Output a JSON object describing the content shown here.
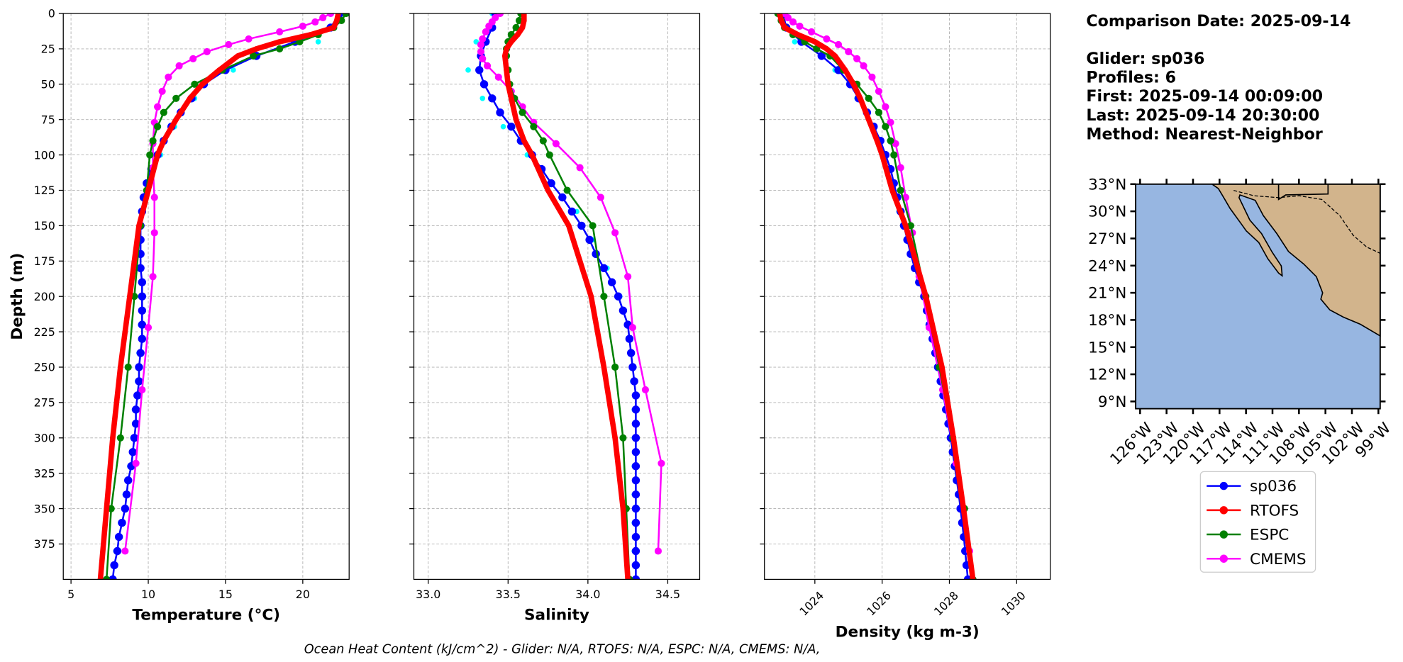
{
  "chart_data": [
    {
      "type": "line",
      "xlabel": "Temperature (°C)",
      "ylabel": "Depth (m)",
      "xlim": [
        4.5,
        23
      ],
      "ylim": [
        400,
        0
      ],
      "xticks": [
        5,
        10,
        15,
        20
      ],
      "yticks": [
        0,
        25,
        50,
        75,
        100,
        125,
        150,
        175,
        200,
        225,
        250,
        275,
        300,
        325,
        350,
        375
      ],
      "show_ytick_labels": true,
      "rotate_xticks": false,
      "grid": true,
      "series": [
        {
          "color": "#00ffff",
          "linewidth": 0,
          "markersize": 3,
          "y": [
            0,
            20,
            40,
            60,
            80,
            100,
            120,
            140,
            160,
            180,
            200,
            220,
            240,
            260,
            280,
            300,
            320,
            340,
            360,
            380,
            400
          ],
          "values": [
            22.6,
            21.0,
            15.5,
            13.0,
            11.7,
            10.8,
            10.0,
            9.6,
            9.4,
            9.4,
            9.5,
            9.5,
            9.4,
            9.3,
            9.1,
            9.0,
            8.8,
            8.5,
            8.2,
            7.9,
            7.6
          ]
        },
        {
          "name": "sp036",
          "color": "#0000ff",
          "linewidth": 2,
          "markersize": 4.5,
          "y": [
            0,
            10,
            20,
            30,
            40,
            50,
            60,
            70,
            80,
            90,
            100,
            110,
            120,
            130,
            140,
            150,
            160,
            170,
            180,
            190,
            200,
            210,
            220,
            230,
            240,
            250,
            260,
            270,
            280,
            290,
            300,
            310,
            320,
            330,
            340,
            350,
            360,
            370,
            380,
            390,
            400
          ],
          "values": [
            22.4,
            21.8,
            19.5,
            17.0,
            15.0,
            13.6,
            12.8,
            12.1,
            11.5,
            11.0,
            10.6,
            10.2,
            9.9,
            9.7,
            9.6,
            9.5,
            9.5,
            9.5,
            9.5,
            9.6,
            9.6,
            9.6,
            9.6,
            9.6,
            9.5,
            9.4,
            9.4,
            9.3,
            9.2,
            9.2,
            9.1,
            9.0,
            8.9,
            8.7,
            8.6,
            8.5,
            8.3,
            8.1,
            8.0,
            7.8,
            7.7
          ]
        },
        {
          "name": "CMEMS",
          "color": "#ff00ff",
          "linewidth": 2,
          "markersize": 4,
          "y": [
            0,
            3,
            6,
            9,
            13,
            18,
            22,
            27,
            32,
            37,
            45,
            55,
            66,
            77,
            92,
            109,
            130,
            155,
            186,
            222,
            266,
            318,
            380
          ],
          "values": [
            21.8,
            21.3,
            20.8,
            20.0,
            18.5,
            16.5,
            15.2,
            13.8,
            12.9,
            12.0,
            11.3,
            10.9,
            10.6,
            10.4,
            10.3,
            10.3,
            10.4,
            10.4,
            10.3,
            10.0,
            9.6,
            9.2,
            8.5
          ]
        },
        {
          "name": "ESPC",
          "color": "#008000",
          "linewidth": 2,
          "markersize": 4,
          "y": [
            0,
            5,
            10,
            15,
            20,
            25,
            30,
            40,
            50,
            60,
            70,
            80,
            90,
            100,
            125,
            150,
            200,
            250,
            300,
            350,
            400
          ],
          "values": [
            22.8,
            22.5,
            22.0,
            21.0,
            19.8,
            18.5,
            16.8,
            14.8,
            13.0,
            11.8,
            11.0,
            10.6,
            10.3,
            10.1,
            9.9,
            9.5,
            9.1,
            8.7,
            8.2,
            7.6,
            7.3
          ]
        },
        {
          "name": "RTOFS",
          "color": "#ff0000",
          "linewidth": 6,
          "markersize": 3,
          "y": [
            0,
            5,
            10,
            15,
            20,
            25,
            30,
            40,
            50,
            60,
            75,
            90,
            100,
            125,
            150,
            200,
            250,
            300,
            350,
            400
          ],
          "values": [
            22.3,
            22.2,
            22.0,
            20.5,
            18.5,
            17.0,
            15.8,
            14.6,
            13.5,
            12.7,
            11.8,
            11.0,
            10.6,
            10.0,
            9.4,
            8.8,
            8.2,
            7.7,
            7.3,
            6.9
          ]
        }
      ]
    },
    {
      "type": "line",
      "xlabel": "Salinity",
      "xlim": [
        32.91,
        34.7
      ],
      "ylim": [
        400,
        0
      ],
      "xticks": [
        {
          "value": 33,
          "label": "33.0"
        },
        {
          "value": 33.5,
          "label": "33.5"
        },
        {
          "value": 34,
          "label": "34.0"
        },
        {
          "value": 34.5,
          "label": "34.5"
        }
      ],
      "yticks": [
        0,
        25,
        50,
        75,
        100,
        125,
        150,
        175,
        200,
        225,
        250,
        275,
        300,
        325,
        350,
        375
      ],
      "show_ytick_labels": false,
      "rotate_xticks": false,
      "grid": true,
      "series": [
        {
          "color": "#00ffff",
          "linewidth": 0,
          "markersize": 3,
          "y": [
            0,
            20,
            40,
            60,
            80,
            100,
            120,
            140,
            160,
            180,
            200,
            220,
            240,
            260,
            280,
            300,
            320,
            340,
            360,
            380,
            400
          ],
          "values": [
            33.4,
            33.3,
            33.25,
            33.34,
            33.47,
            33.62,
            33.78,
            33.93,
            34.03,
            34.12,
            34.2,
            34.25,
            34.27,
            34.28,
            34.29,
            34.29,
            34.29,
            34.29,
            34.29,
            34.29,
            34.29
          ]
        },
        {
          "name": "sp036",
          "color": "#0000ff",
          "linewidth": 2,
          "markersize": 4.5,
          "y": [
            0,
            10,
            20,
            30,
            40,
            50,
            60,
            70,
            80,
            90,
            100,
            110,
            120,
            130,
            140,
            150,
            160,
            170,
            180,
            190,
            200,
            210,
            220,
            230,
            240,
            250,
            260,
            270,
            280,
            290,
            300,
            310,
            320,
            330,
            340,
            350,
            360,
            370,
            380,
            390,
            400
          ],
          "values": [
            33.42,
            33.4,
            33.36,
            33.33,
            33.32,
            33.35,
            33.4,
            33.45,
            33.52,
            33.58,
            33.65,
            33.71,
            33.77,
            33.84,
            33.9,
            33.96,
            34.01,
            34.05,
            34.1,
            34.15,
            34.19,
            34.22,
            34.25,
            34.26,
            34.27,
            34.28,
            34.29,
            34.3,
            34.3,
            34.3,
            34.3,
            34.3,
            34.3,
            34.3,
            34.3,
            34.3,
            34.3,
            34.3,
            34.3,
            34.3,
            34.3
          ]
        },
        {
          "name": "CMEMS",
          "color": "#ff00ff",
          "linewidth": 2,
          "markersize": 4,
          "y": [
            0,
            3,
            6,
            9,
            13,
            18,
            22,
            27,
            32,
            37,
            45,
            55,
            66,
            77,
            92,
            109,
            130,
            155,
            186,
            222,
            266,
            318,
            380
          ],
          "values": [
            33.45,
            33.42,
            33.4,
            33.38,
            33.36,
            33.34,
            33.33,
            33.33,
            33.34,
            33.37,
            33.44,
            33.52,
            33.59,
            33.66,
            33.8,
            33.95,
            34.08,
            34.17,
            34.25,
            34.28,
            34.36,
            34.46,
            34.44
          ]
        },
        {
          "name": "ESPC",
          "color": "#008000",
          "linewidth": 2,
          "markersize": 4,
          "y": [
            0,
            5,
            10,
            15,
            20,
            25,
            30,
            40,
            50,
            60,
            70,
            80,
            90,
            100,
            125,
            150,
            200,
            250,
            300,
            350,
            400
          ],
          "values": [
            33.58,
            33.57,
            33.55,
            33.52,
            33.5,
            33.49,
            33.49,
            33.5,
            33.51,
            33.54,
            33.59,
            33.66,
            33.72,
            33.76,
            33.87,
            34.03,
            34.1,
            34.17,
            34.22,
            34.24,
            34.26
          ]
        },
        {
          "name": "RTOFS",
          "color": "#ff0000",
          "linewidth": 6,
          "markersize": 3,
          "y": [
            0,
            5,
            10,
            15,
            20,
            25,
            30,
            40,
            50,
            60,
            75,
            90,
            100,
            125,
            150,
            200,
            250,
            300,
            350,
            400
          ],
          "values": [
            33.6,
            33.6,
            33.59,
            33.56,
            33.52,
            33.49,
            33.48,
            33.49,
            33.5,
            33.52,
            33.55,
            33.6,
            33.65,
            33.75,
            33.88,
            34.02,
            34.1,
            34.17,
            34.22,
            34.25
          ]
        }
      ]
    },
    {
      "type": "line",
      "xlabel": "Density (kg m-3)",
      "xlim": [
        1022.5,
        1031
      ],
      "ylim": [
        400,
        0
      ],
      "xticks": [
        1024,
        1026,
        1028,
        1030
      ],
      "yticks": [
        0,
        25,
        50,
        75,
        100,
        125,
        150,
        175,
        200,
        225,
        250,
        275,
        300,
        325,
        350,
        375
      ],
      "show_ytick_labels": false,
      "rotate_xticks": true,
      "grid": true,
      "series": [
        {
          "color": "#00ffff",
          "linewidth": 0,
          "markersize": 3,
          "y": [
            0,
            20,
            40,
            60,
            80,
            100,
            120,
            140,
            160,
            180,
            200,
            220,
            240,
            260,
            280,
            300,
            320,
            340,
            360,
            380,
            400
          ],
          "values": [
            1023.0,
            1023.4,
            1024.6,
            1025.25,
            1025.7,
            1026.05,
            1026.3,
            1026.5,
            1026.72,
            1026.95,
            1027.22,
            1027.39,
            1027.56,
            1027.72,
            1027.88,
            1028.02,
            1028.14,
            1028.26,
            1028.36,
            1028.45,
            1028.53
          ]
        },
        {
          "name": "sp036",
          "color": "#0000ff",
          "linewidth": 2,
          "markersize": 4.5,
          "y": [
            0,
            10,
            20,
            30,
            40,
            50,
            60,
            70,
            80,
            90,
            100,
            110,
            120,
            130,
            140,
            150,
            160,
            170,
            180,
            190,
            200,
            210,
            220,
            230,
            240,
            250,
            260,
            270,
            280,
            290,
            300,
            310,
            320,
            330,
            340,
            350,
            360,
            370,
            380,
            390,
            400
          ],
          "values": [
            1023.05,
            1023.15,
            1023.6,
            1024.2,
            1024.7,
            1025.05,
            1025.3,
            1025.55,
            1025.75,
            1025.95,
            1026.1,
            1026.25,
            1026.35,
            1026.45,
            1026.55,
            1026.65,
            1026.75,
            1026.85,
            1026.97,
            1027.1,
            1027.25,
            1027.33,
            1027.41,
            1027.5,
            1027.58,
            1027.66,
            1027.74,
            1027.82,
            1027.9,
            1027.97,
            1028.04,
            1028.1,
            1028.16,
            1028.22,
            1028.28,
            1028.33,
            1028.38,
            1028.43,
            1028.47,
            1028.51,
            1028.55
          ]
        },
        {
          "name": "CMEMS",
          "color": "#ff00ff",
          "linewidth": 2,
          "markersize": 4,
          "y": [
            0,
            3,
            6,
            9,
            13,
            18,
            22,
            27,
            32,
            37,
            45,
            55,
            66,
            77,
            92,
            109,
            130,
            155,
            186,
            222,
            266,
            318,
            380
          ],
          "values": [
            1023.1,
            1023.2,
            1023.35,
            1023.55,
            1023.9,
            1024.35,
            1024.7,
            1025.0,
            1025.25,
            1025.45,
            1025.7,
            1025.9,
            1026.1,
            1026.25,
            1026.4,
            1026.55,
            1026.7,
            1026.9,
            1027.1,
            1027.4,
            1027.8,
            1028.2,
            1028.6
          ]
        },
        {
          "name": "ESPC",
          "color": "#008000",
          "linewidth": 2,
          "markersize": 4,
          "y": [
            0,
            5,
            10,
            15,
            20,
            25,
            30,
            40,
            50,
            60,
            70,
            80,
            90,
            100,
            125,
            150,
            200,
            250,
            300,
            350,
            400
          ],
          "values": [
            1022.9,
            1023.0,
            1023.1,
            1023.35,
            1023.7,
            1024.05,
            1024.45,
            1024.85,
            1025.25,
            1025.6,
            1025.9,
            1026.1,
            1026.25,
            1026.35,
            1026.55,
            1026.85,
            1027.3,
            1027.7,
            1028.1,
            1028.45,
            1028.7
          ]
        },
        {
          "name": "RTOFS",
          "color": "#ff0000",
          "linewidth": 6,
          "markersize": 3,
          "y": [
            0,
            5,
            10,
            15,
            20,
            25,
            30,
            40,
            50,
            60,
            75,
            90,
            100,
            125,
            150,
            200,
            250,
            300,
            350,
            400
          ],
          "values": [
            1022.95,
            1023.0,
            1023.1,
            1023.5,
            1024.0,
            1024.35,
            1024.6,
            1024.9,
            1025.15,
            1025.35,
            1025.6,
            1025.85,
            1026.0,
            1026.3,
            1026.7,
            1027.3,
            1027.78,
            1028.12,
            1028.42,
            1028.7
          ]
        }
      ]
    }
  ],
  "info_blocks": [
    [
      "Comparison Date: 2025-09-14"
    ],
    [
      "Glider: sp036",
      "Profiles: 6",
      "First: 2025-09-14 00:09:00",
      "Last: 2025-09-14 20:30:00",
      "Method: Nearest-Neighbor"
    ]
  ],
  "map": {
    "lonlim": [
      -126.5,
      -98.8
    ],
    "latlim": [
      8.2,
      33
    ],
    "latticks": [
      {
        "value": 33,
        "label": "33°N"
      },
      {
        "value": 30,
        "label": "30°N"
      },
      {
        "value": 27,
        "label": "27°N"
      },
      {
        "value": 24,
        "label": "24°N"
      },
      {
        "value": 21,
        "label": "21°N"
      },
      {
        "value": 18,
        "label": "18°N"
      },
      {
        "value": 15,
        "label": "15°N"
      },
      {
        "value": 12,
        "label": "12°N"
      },
      {
        "value": 9,
        "label": "9°N"
      }
    ],
    "lonticks": [
      {
        "value": -126,
        "label": "126°W"
      },
      {
        "value": -123,
        "label": "123°W"
      },
      {
        "value": -120,
        "label": "120°W"
      },
      {
        "value": -117,
        "label": "117°W"
      },
      {
        "value": -114,
        "label": "114°W"
      },
      {
        "value": -111,
        "label": "111°W"
      },
      {
        "value": -108,
        "label": "108°W"
      },
      {
        "value": -105,
        "label": "105°W"
      },
      {
        "value": -102,
        "label": "102°W"
      },
      {
        "value": -99,
        "label": "99°W"
      }
    ]
  },
  "annotation": "Ocean Heat Content (kJ/cm^2) - Glider: N/A,  RTOFS: N/A,  ESPC: N/A,  CMEMS: N/A,"
}
